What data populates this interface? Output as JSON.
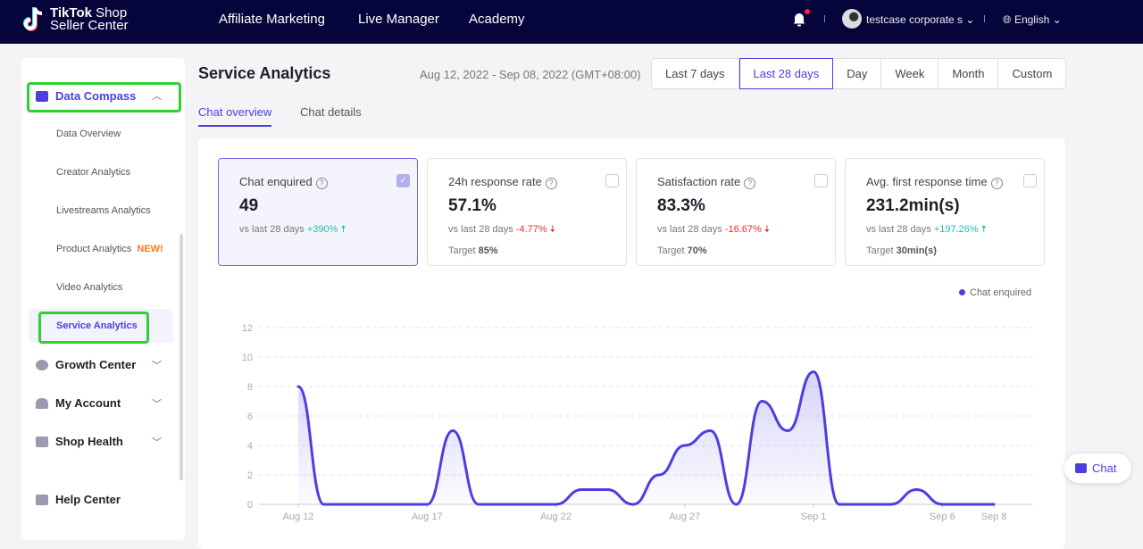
{
  "header": {
    "logo_line1_bold": "TikTok",
    "logo_line1": " Shop",
    "logo_line2": "Seller Center",
    "nav": [
      "Affiliate Marketing",
      "Live Manager",
      "Academy"
    ],
    "user": "testcase corporate s",
    "language": "English"
  },
  "sidebar": {
    "group": "Data Compass",
    "items": [
      "Data Overview",
      "Creator Analytics",
      "Livestreams Analytics",
      "Product Analytics",
      "Video Analytics",
      "Service Analytics"
    ],
    "new_badge": "NEW!",
    "others": [
      "Growth Center",
      "My Account",
      "Shop Health"
    ],
    "help": "Help Center"
  },
  "page": {
    "title": "Service Analytics",
    "range": "Aug 12, 2022 - Sep 08, 2022 (GMT+08:00)",
    "periods": [
      "Last 7 days",
      "Last 28 days",
      "Day",
      "Week",
      "Month",
      "Custom"
    ],
    "active_period": "Last 28 days",
    "tabs": [
      "Chat overview",
      "Chat details"
    ]
  },
  "metrics": [
    {
      "label": "Chat enquired",
      "value": "49",
      "cmp": "vs last 28 days",
      "delta": "+390%",
      "dir": "up",
      "checked": true
    },
    {
      "label": "24h response rate",
      "value": "57.1%",
      "cmp": "vs last 28 days",
      "delta": "-4.77%",
      "dir": "down",
      "target_label": "Target",
      "target": "85%"
    },
    {
      "label": "Satisfaction rate",
      "value": "83.3%",
      "cmp": "vs last 28 days",
      "delta": "-16.67%",
      "dir": "down",
      "target_label": "Target",
      "target": "70%"
    },
    {
      "label": "Avg. first response time",
      "value": "231.2min(s)",
      "cmp": "vs last 28 days",
      "delta": "+197.26%",
      "dir": "up",
      "target_label": "Target",
      "target": "30min(s)"
    }
  ],
  "chat_button": "Chat",
  "chart_data": {
    "type": "area",
    "legend": "Chat enquired",
    "legend_position": "top-right",
    "color": "#4b3fe0",
    "ylim": [
      0,
      12
    ],
    "yticks": [
      0,
      2,
      4,
      6,
      8,
      10,
      12
    ],
    "grid": true,
    "x": [
      "Aug 12",
      "Aug 13",
      "Aug 14",
      "Aug 15",
      "Aug 16",
      "Aug 17",
      "Aug 18",
      "Aug 19",
      "Aug 20",
      "Aug 21",
      "Aug 22",
      "Aug 23",
      "Aug 24",
      "Aug 25",
      "Aug 26",
      "Aug 27",
      "Aug 28",
      "Aug 29",
      "Aug 30",
      "Aug 31",
      "Sep 1",
      "Sep 2",
      "Sep 3",
      "Sep 4",
      "Sep 5",
      "Sep 6",
      "Sep 7",
      "Sep 8"
    ],
    "xticks": [
      "Aug 12",
      "Aug 17",
      "Aug 22",
      "Aug 27",
      "Sep 1",
      "Sep 6",
      "Sep 8"
    ],
    "values": [
      8,
      0,
      0,
      0,
      0,
      0,
      5,
      0,
      0,
      0,
      0,
      1,
      1,
      0,
      2,
      4,
      5,
      0,
      7,
      5,
      9,
      0,
      0,
      0,
      1,
      0,
      0,
      0
    ]
  }
}
